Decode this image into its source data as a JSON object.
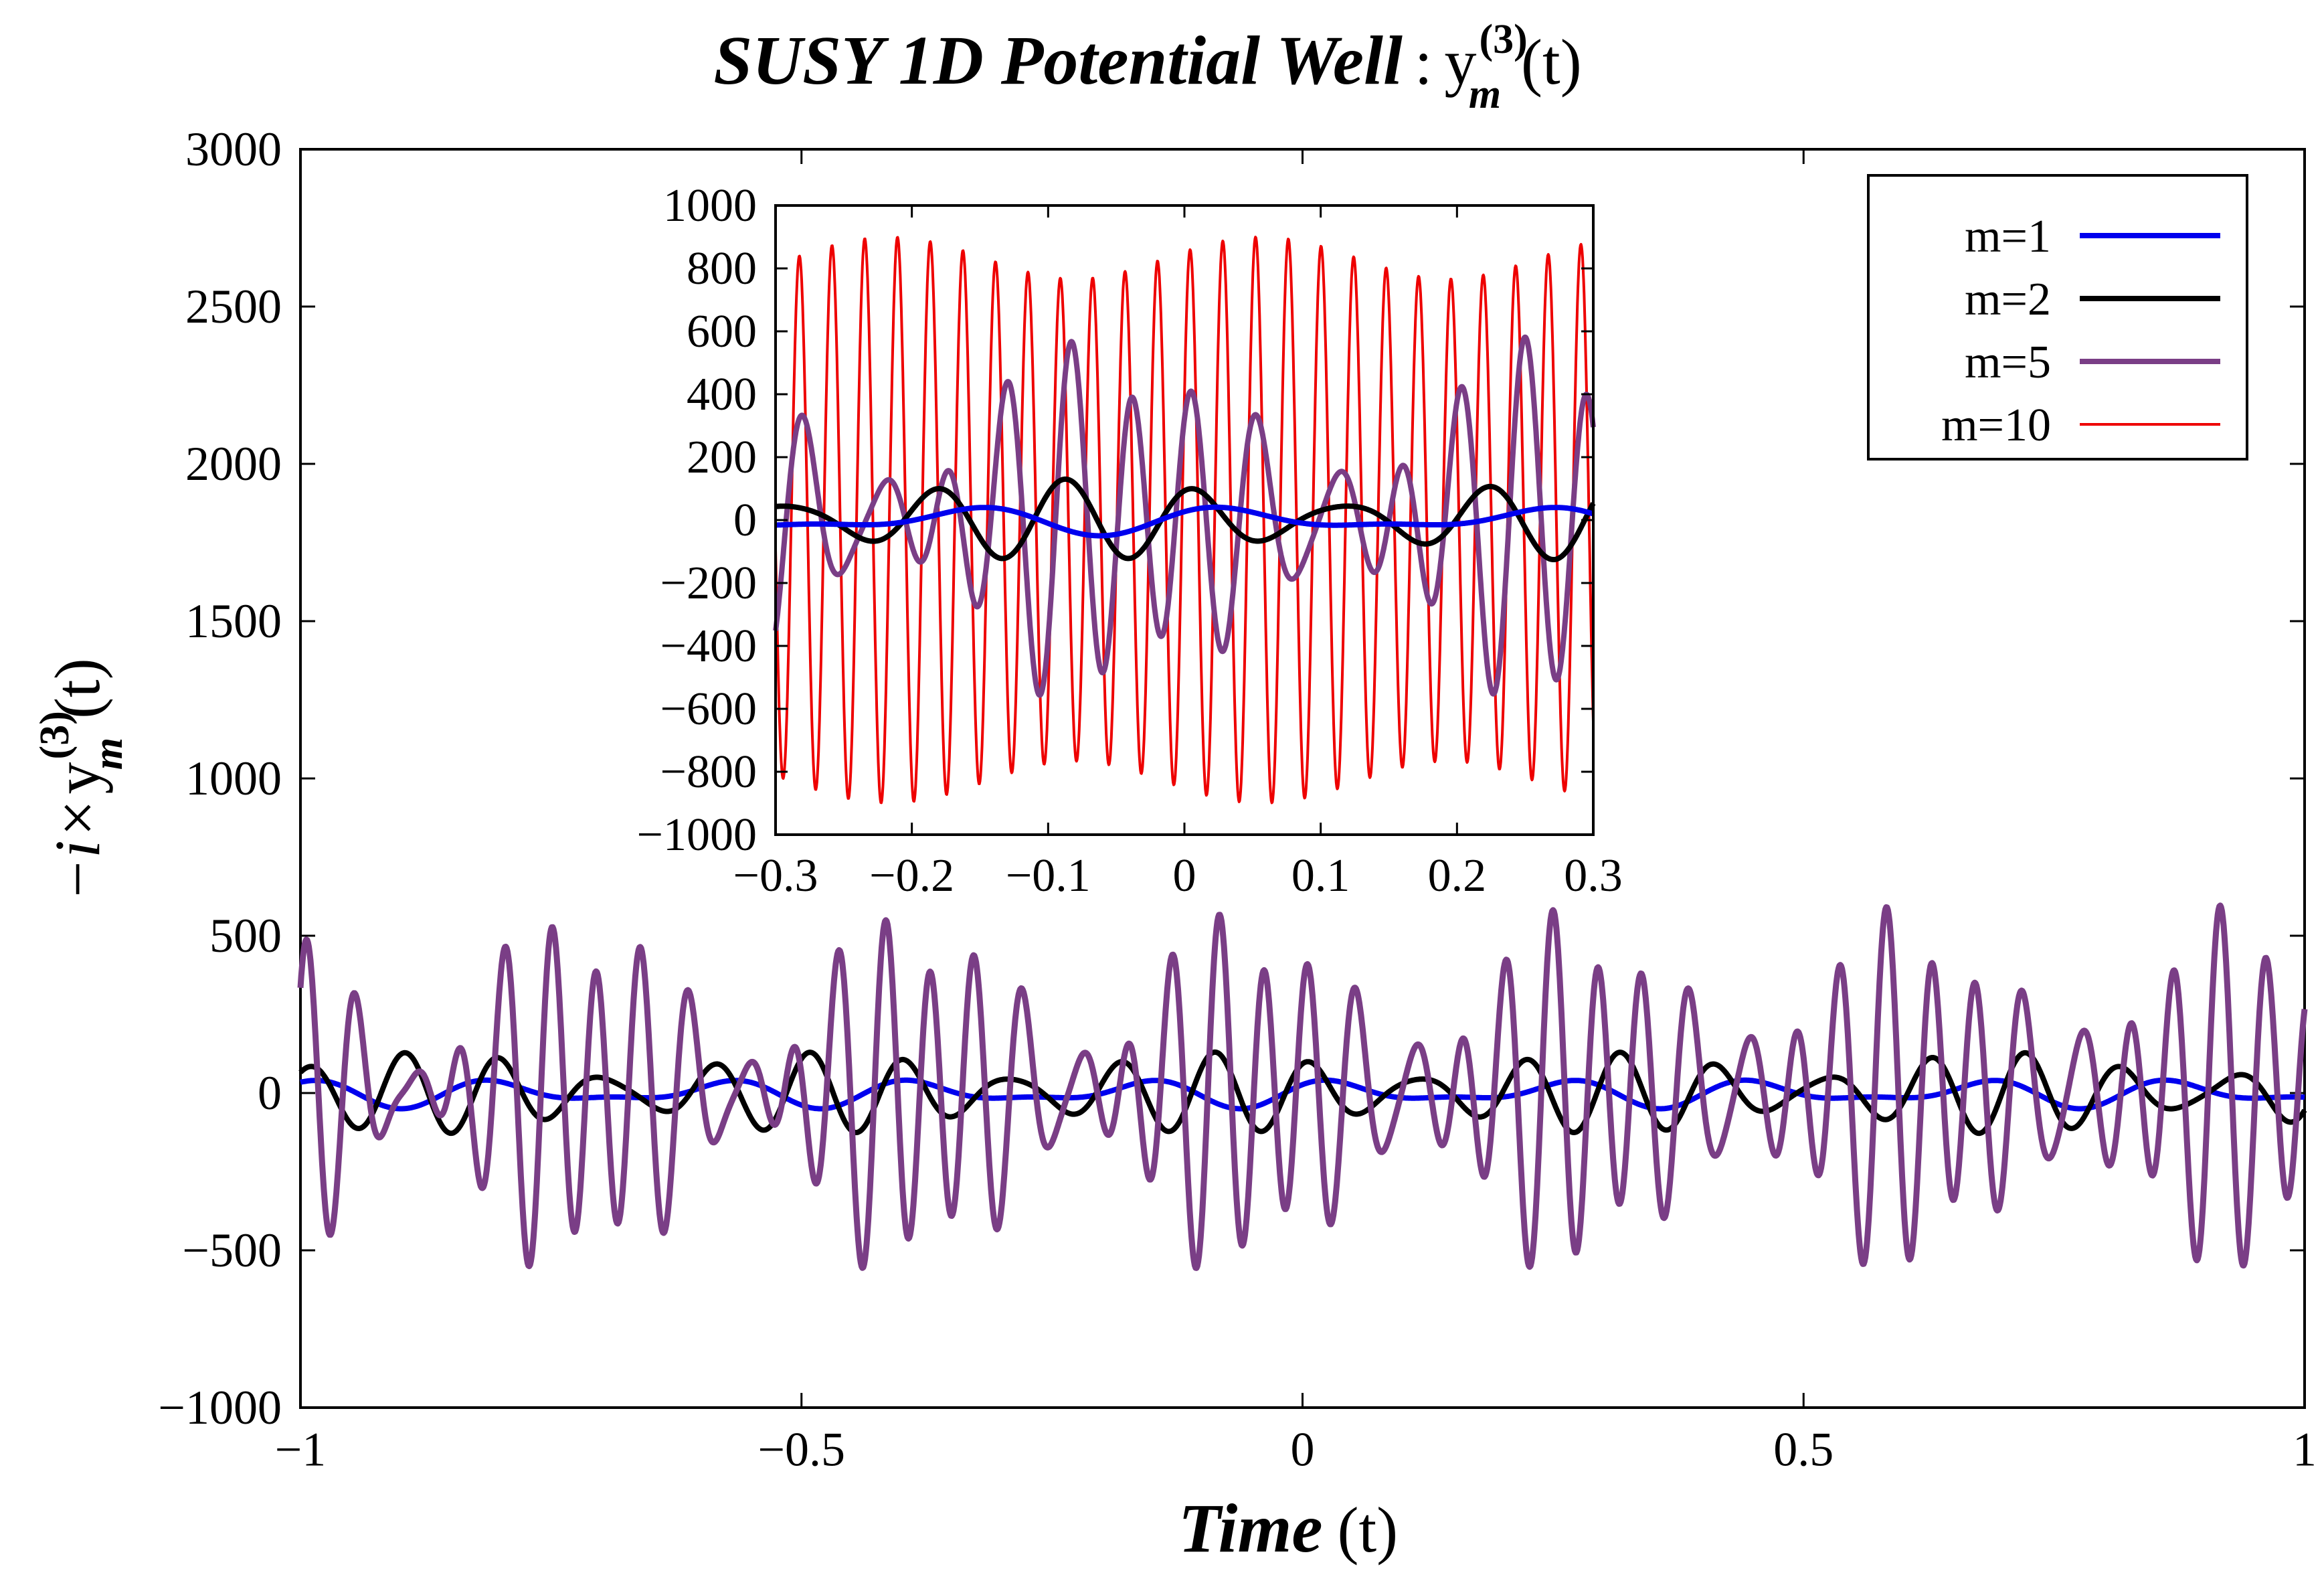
{
  "chart_data": [
    {
      "id": "main",
      "type": "line",
      "title": {
        "bold_part": "SUSY 1D Potential Well",
        "separator": ":",
        "func": "y",
        "sup": "(3)",
        "sub": "m",
        "arg": "(t)"
      },
      "xlabel": {
        "bold_part": "Time",
        "rest": "(t)"
      },
      "ylabel": {
        "prefix": "−i×",
        "func": "y",
        "sup": "(3)",
        "sub": "m",
        "arg": "(t)"
      },
      "xlim": [
        -1,
        1
      ],
      "ylim": [
        -1000,
        3000
      ],
      "xticks": [
        -1,
        -0.5,
        0,
        0.5,
        1
      ],
      "xtick_labels": [
        "−1",
        "−0.5",
        "0",
        "0.5",
        "1"
      ],
      "yticks": [
        -1000,
        -500,
        0,
        500,
        1000,
        1500,
        2000,
        2500,
        3000
      ],
      "ytick_labels": [
        "−1000",
        "−500",
        "0",
        "500",
        "1000",
        "1500",
        "2000",
        "2500",
        "3000"
      ],
      "legend_position": "top-right",
      "series": [
        {
          "name": "m=1",
          "color": "#0000ee",
          "visible_in": "main-and-inset",
          "amplitude": 50,
          "components": [
            [
              1,
              30,
              0.3
            ],
            [
              0.6,
              45,
              1.2
            ]
          ]
        },
        {
          "name": "m=2",
          "color": "#000000",
          "visible_in": "main-and-inset",
          "amplitude": 130,
          "components": [
            [
              1,
              62,
              0.7
            ],
            [
              0.5,
              78,
              2.1
            ]
          ]
        },
        {
          "name": "m=5",
          "color": "#7a3e86",
          "visible_in": "main-and-inset",
          "amplitude": 600,
          "components": [
            [
              1,
              132,
              0.2
            ],
            [
              0.7,
              151,
              1.4
            ],
            [
              0.35,
              95,
              2.5
            ]
          ]
        },
        {
          "name": "m=10",
          "color": "#ee0000",
          "visible_in": "inset-only",
          "amplitude": 900,
          "components": [
            [
              1,
              263,
              0.4
            ],
            [
              0.08,
              240,
              1.7
            ]
          ]
        }
      ]
    },
    {
      "id": "inset",
      "type": "line",
      "xlim": [
        -0.3,
        0.3
      ],
      "ylim": [
        -1000,
        1000
      ],
      "xticks": [
        -0.3,
        -0.2,
        -0.1,
        0,
        0.1,
        0.2,
        0.3
      ],
      "xtick_labels": [
        "−0.3",
        "−0.2",
        "−0.1",
        "0",
        "0.1",
        "0.2",
        "0.3"
      ],
      "yticks": [
        -1000,
        -800,
        -600,
        -400,
        -200,
        0,
        200,
        400,
        600,
        800,
        1000
      ],
      "ytick_labels": [
        "−1000",
        "−800",
        "−600",
        "−400",
        "−200",
        "0",
        "200",
        "400",
        "600",
        "800",
        "1000"
      ],
      "series_ref": [
        "m=1",
        "m=2",
        "m=5",
        "m=10"
      ]
    }
  ]
}
